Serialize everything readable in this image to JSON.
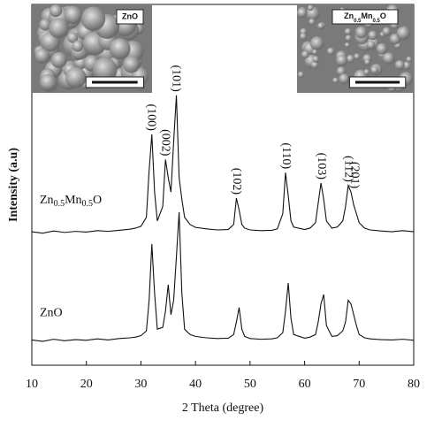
{
  "chart_data": {
    "type": "line",
    "x_label": "2 Theta (degree)",
    "y_label": "Intensity (a.u)",
    "x": [
      10,
      12,
      14,
      16,
      18,
      20,
      22,
      24,
      26,
      28,
      29,
      30,
      31,
      31.5,
      32,
      32.5,
      33,
      34,
      34.5,
      35,
      35.5,
      36,
      36.5,
      37,
      37.5,
      38,
      39,
      40,
      42,
      44,
      46,
      47,
      47.5,
      48,
      48.5,
      49,
      50,
      52,
      54,
      55,
      56,
      56.5,
      57,
      57.5,
      58,
      60,
      61,
      62,
      62.5,
      63,
      63.5,
      64,
      65,
      66,
      67,
      67.5,
      68,
      68.5,
      69,
      69.5,
      70,
      71,
      72,
      74,
      76,
      78,
      80
    ],
    "series": [
      {
        "name": "ZnO",
        "color": "#111111",
        "values": [
          7.0,
          6.6,
          7.2,
          6.8,
          7.1,
          6.9,
          7.3,
          7.0,
          7.4,
          7.6,
          7.8,
          8.2,
          9.5,
          18,
          33.6,
          20,
          10,
          10.5,
          15,
          22.3,
          14,
          18,
          30,
          42.4,
          20,
          10,
          8.5,
          8.0,
          7.6,
          7.4,
          7.5,
          8.5,
          12,
          16,
          10,
          8,
          7.4,
          7.2,
          7.3,
          7.6,
          9,
          15,
          22.8,
          13,
          8.5,
          7.5,
          7.8,
          8.5,
          12,
          17,
          19.6,
          11,
          8,
          8.2,
          9.5,
          12,
          18,
          17,
          14,
          11,
          8.5,
          7.6,
          7.3,
          7.1,
          7.0,
          7.2,
          6.9
        ]
      },
      {
        "name": [
          "Zn",
          "0.5",
          "Mn",
          "0.5",
          "O"
        ],
        "color": "#111111",
        "values": [
          37,
          36.6,
          37.2,
          36.8,
          37.1,
          36.9,
          37.3,
          37.1,
          37.4,
          37.7,
          38,
          38.5,
          41,
          54,
          64,
          48,
          40,
          44,
          57,
          52,
          48,
          62,
          74.8,
          52,
          46,
          41,
          39,
          38.2,
          37.8,
          37.5,
          37.6,
          39,
          46.3,
          43,
          39,
          38,
          37.5,
          37.3,
          37.4,
          37.8,
          42,
          53.4,
          47,
          40,
          38.3,
          37.6,
          38,
          39.5,
          45,
          50.5,
          46,
          40,
          38,
          38.3,
          40,
          44,
          49.8,
          48,
          44.4,
          42,
          39.5,
          38,
          37.5,
          37.2,
          37,
          37.3,
          37
        ]
      }
    ],
    "peak_labels": [
      {
        "text": "(100)",
        "x": 31.8
      },
      {
        "text": "(002)",
        "x": 34.4
      },
      {
        "text": "(101)",
        "x": 36.4
      },
      {
        "text": "(102)",
        "x": 47.5
      },
      {
        "text": "(110)",
        "x": 56.5
      },
      {
        "text": "(103)",
        "x": 63
      },
      {
        "text": "(112)",
        "x": 68
      },
      {
        "text": "(201)",
        "x": 69.1
      }
    ],
    "insets": [
      {
        "label": "ZnO"
      },
      {
        "label": [
          "Zn",
          "0.5",
          "Mn",
          "0.5",
          "O"
        ]
      }
    ],
    "xlim": [
      10,
      80
    ],
    "xticks": [
      10,
      20,
      30,
      40,
      50,
      60,
      70,
      80
    ],
    "ylim": [
      0,
      100
    ]
  }
}
